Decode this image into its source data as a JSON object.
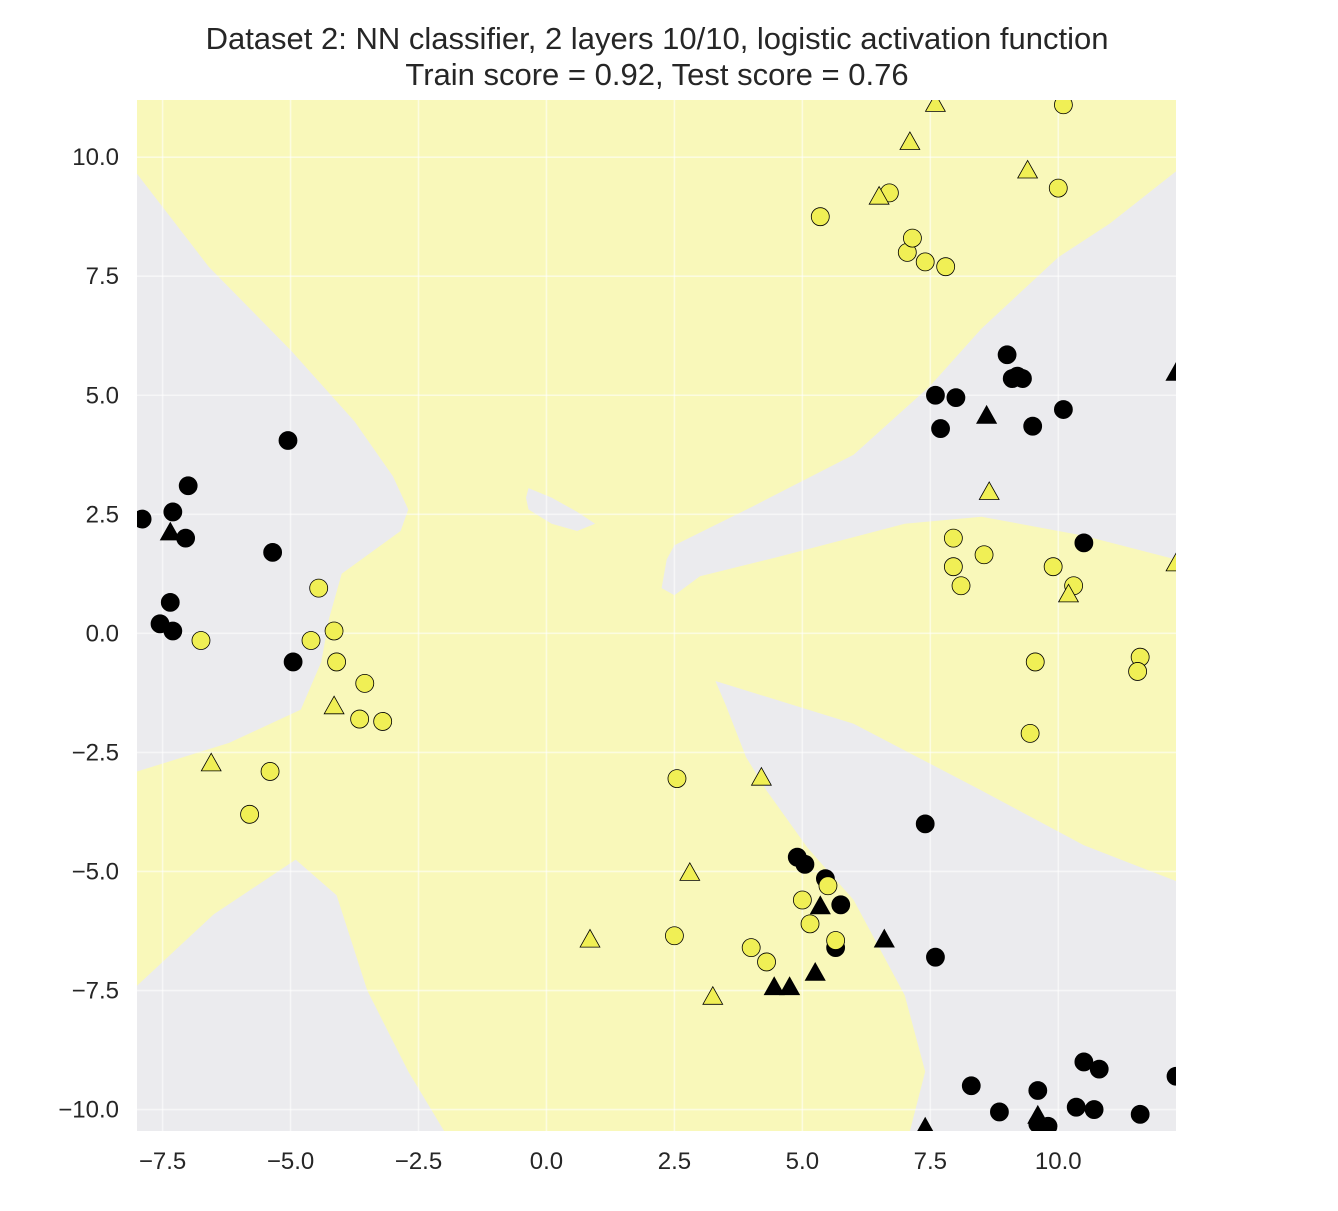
{
  "chart_data": {
    "type": "scatter",
    "title_lines": [
      "Dataset 2: NN classifier, 2 layers 10/10, logistic activation function",
      "Train score = 0.92, Test score = 0.76"
    ],
    "xlabel": "",
    "ylabel": "",
    "xlim": [
      -8.0,
      12.3
    ],
    "ylim": [
      -10.45,
      11.2
    ],
    "xticks": [
      -7.5,
      -5.0,
      -2.5,
      0.0,
      2.5,
      5.0,
      7.5,
      10.0
    ],
    "yticks": [
      -10.0,
      -7.5,
      -5.0,
      -2.5,
      0.0,
      2.5,
      5.0,
      7.5,
      10.0
    ],
    "xtick_labels": [
      "−7.5",
      "−5.0",
      "−2.5",
      "0.0",
      "2.5",
      "5.0",
      "7.5",
      "10.0"
    ],
    "ytick_labels": [
      "−10.0",
      "−7.5",
      "−5.0",
      "−2.5",
      "0.0",
      "2.5",
      "5.0",
      "7.5",
      "10.0"
    ],
    "grid": true,
    "colors": {
      "class0": "#000000",
      "class1": "#f0ef55",
      "region0": "#ebebee",
      "region1": "#f9f8ba",
      "grid": "#ffffff",
      "edge": "#000000"
    },
    "decision_regions": [
      {
        "class": 0,
        "polygon": [
          [
            -8.0,
            9.65
          ],
          [
            -6.6,
            7.7
          ],
          [
            -5.0,
            5.95
          ],
          [
            -3.75,
            4.45
          ],
          [
            -3.0,
            3.3
          ],
          [
            -2.7,
            2.6
          ],
          [
            -2.85,
            2.15
          ],
          [
            -4.0,
            1.25
          ],
          [
            -4.25,
            0.3
          ],
          [
            -4.4,
            -0.6
          ],
          [
            -4.8,
            -1.6
          ],
          [
            -6.2,
            -2.3
          ],
          [
            -8.0,
            -2.9
          ]
        ]
      },
      {
        "class": 0,
        "polygon": [
          [
            -8.0,
            -7.4
          ],
          [
            -6.5,
            -5.9
          ],
          [
            -4.9,
            -4.75
          ],
          [
            -4.1,
            -5.5
          ],
          [
            -3.5,
            -7.5
          ],
          [
            -2.7,
            -9.2
          ],
          [
            -2.0,
            -10.45
          ],
          [
            -8.0,
            -10.45
          ]
        ]
      },
      {
        "class": 0,
        "polygon": [
          [
            12.3,
            11.2
          ],
          [
            12.3,
            9.7
          ],
          [
            11.0,
            8.6
          ],
          [
            10.0,
            7.9
          ],
          [
            8.5,
            6.4
          ],
          [
            7.5,
            5.2
          ],
          [
            6.0,
            3.75
          ],
          [
            4.0,
            2.65
          ],
          [
            2.5,
            1.85
          ],
          [
            2.35,
            1.55
          ],
          [
            2.25,
            0.95
          ],
          [
            2.5,
            0.8
          ],
          [
            3.0,
            1.2
          ],
          [
            4.5,
            1.6
          ],
          [
            7.0,
            2.3
          ],
          [
            8.5,
            2.45
          ],
          [
            10.5,
            2.05
          ],
          [
            12.3,
            1.55
          ],
          [
            12.3,
            11.2
          ]
        ]
      },
      {
        "class": 0,
        "polygon": [
          [
            3.3,
            -1.0
          ],
          [
            3.5,
            -1.5
          ],
          [
            3.9,
            -2.6
          ],
          [
            4.3,
            -3.3
          ],
          [
            5.1,
            -4.5
          ],
          [
            6.0,
            -5.6
          ],
          [
            7.0,
            -7.6
          ],
          [
            7.4,
            -9.2
          ],
          [
            7.1,
            -10.45
          ],
          [
            12.3,
            -10.45
          ],
          [
            12.3,
            -5.2
          ],
          [
            10.5,
            -4.45
          ],
          [
            8.5,
            -3.3
          ],
          [
            6.0,
            -1.9
          ]
        ]
      },
      {
        "class": 0,
        "polygon": [
          [
            -0.35,
            3.05
          ],
          [
            0.1,
            2.85
          ],
          [
            0.6,
            2.55
          ],
          [
            0.95,
            2.3
          ],
          [
            0.6,
            2.15
          ],
          [
            0.1,
            2.3
          ],
          [
            -0.35,
            2.6
          ],
          [
            -0.4,
            2.85
          ]
        ]
      }
    ],
    "series": [
      {
        "class": 0,
        "marker": "circle",
        "name": "",
        "points": [
          [
            -7.9,
            2.4
          ],
          [
            -7.3,
            2.55
          ],
          [
            -7.0,
            3.1
          ],
          [
            -7.05,
            2.0
          ],
          [
            -7.35,
            0.65
          ],
          [
            -7.55,
            0.2
          ],
          [
            -7.3,
            0.05
          ],
          [
            -5.05,
            4.05
          ],
          [
            -5.35,
            1.7
          ],
          [
            -4.95,
            -0.6
          ],
          [
            7.6,
            5.0
          ],
          [
            7.7,
            4.3
          ],
          [
            8.0,
            4.95
          ],
          [
            9.0,
            5.85
          ],
          [
            9.1,
            5.35
          ],
          [
            9.2,
            5.4
          ],
          [
            9.3,
            5.35
          ],
          [
            9.5,
            4.35
          ],
          [
            10.1,
            4.7
          ],
          [
            10.5,
            1.9
          ],
          [
            7.4,
            -4.0
          ],
          [
            7.6,
            -6.8
          ],
          [
            4.9,
            -4.7
          ],
          [
            5.05,
            -4.85
          ],
          [
            5.45,
            -5.15
          ],
          [
            5.75,
            -5.7
          ],
          [
            5.65,
            -6.6
          ],
          [
            8.3,
            -9.5
          ],
          [
            8.85,
            -10.05
          ],
          [
            9.6,
            -9.6
          ],
          [
            9.6,
            -10.3
          ],
          [
            9.8,
            -10.35
          ],
          [
            10.35,
            -9.95
          ],
          [
            10.5,
            -9.0
          ],
          [
            10.7,
            -10.0
          ],
          [
            10.8,
            -9.15
          ],
          [
            11.6,
            -10.1
          ],
          [
            12.3,
            -9.3
          ]
        ]
      },
      {
        "class": 0,
        "marker": "triangle",
        "name": "",
        "points": [
          [
            -7.35,
            2.1
          ],
          [
            8.6,
            4.55
          ],
          [
            12.3,
            5.45
          ],
          [
            5.35,
            -5.75
          ],
          [
            6.6,
            -6.45
          ],
          [
            5.25,
            -7.15
          ],
          [
            4.45,
            -7.45
          ],
          [
            4.75,
            -7.45
          ],
          [
            7.4,
            -10.4
          ],
          [
            9.6,
            -10.15
          ]
        ]
      },
      {
        "class": 1,
        "marker": "circle",
        "name": "",
        "points": [
          [
            10.1,
            11.1
          ],
          [
            5.35,
            8.75
          ],
          [
            6.7,
            9.25
          ],
          [
            7.05,
            8.0
          ],
          [
            7.15,
            8.3
          ],
          [
            7.4,
            7.8
          ],
          [
            7.8,
            7.7
          ],
          [
            10.0,
            9.35
          ],
          [
            -6.75,
            -0.15
          ],
          [
            -4.45,
            0.95
          ],
          [
            -4.6,
            -0.15
          ],
          [
            -4.15,
            0.05
          ],
          [
            -4.1,
            -0.6
          ],
          [
            -3.55,
            -1.05
          ],
          [
            -3.65,
            -1.8
          ],
          [
            -3.2,
            -1.85
          ],
          [
            -5.4,
            -2.9
          ],
          [
            -5.8,
            -3.8
          ],
          [
            7.95,
            2.0
          ],
          [
            7.95,
            1.4
          ],
          [
            8.1,
            1.0
          ],
          [
            8.55,
            1.65
          ],
          [
            9.9,
            1.4
          ],
          [
            10.3,
            1.0
          ],
          [
            11.6,
            -0.5
          ],
          [
            11.55,
            -0.8
          ],
          [
            9.55,
            -0.6
          ],
          [
            9.45,
            -2.1
          ],
          [
            2.55,
            -3.05
          ],
          [
            2.5,
            -6.35
          ],
          [
            4.0,
            -6.6
          ],
          [
            4.3,
            -6.9
          ],
          [
            5.0,
            -5.6
          ],
          [
            5.15,
            -6.1
          ],
          [
            5.5,
            -5.3
          ],
          [
            5.65,
            -6.45
          ]
        ]
      },
      {
        "class": 1,
        "marker": "triangle",
        "name": "",
        "points": [
          [
            7.6,
            11.1
          ],
          [
            7.1,
            10.3
          ],
          [
            9.4,
            9.7
          ],
          [
            6.5,
            9.15
          ],
          [
            8.65,
            2.95
          ],
          [
            12.3,
            1.45
          ],
          [
            10.2,
            0.8
          ],
          [
            -4.15,
            -1.55
          ],
          [
            -6.55,
            -2.75
          ],
          [
            4.2,
            -3.05
          ],
          [
            2.8,
            -5.05
          ],
          [
            0.85,
            -6.45
          ],
          [
            3.25,
            -7.65
          ]
        ]
      }
    ]
  }
}
